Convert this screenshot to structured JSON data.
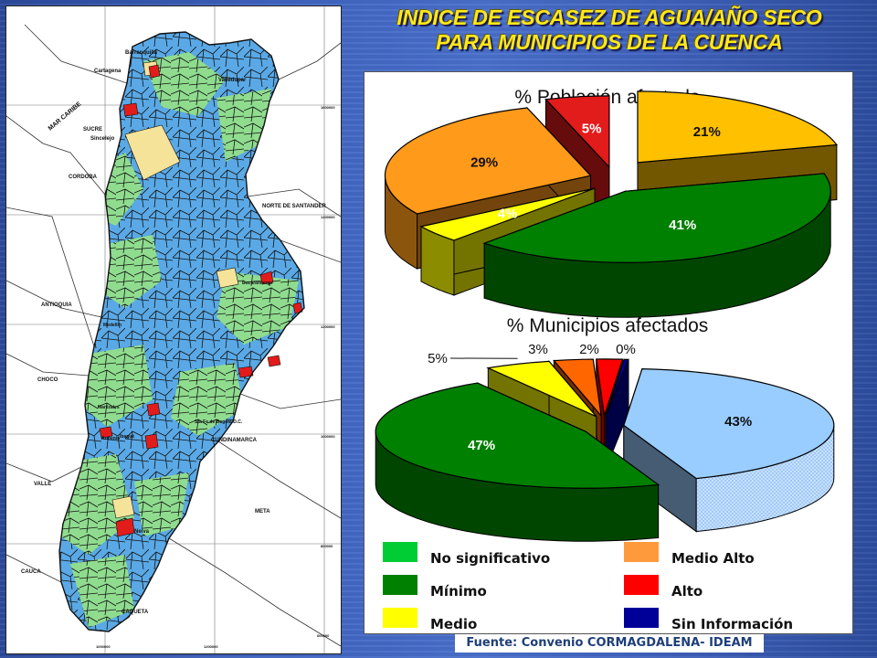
{
  "slide": {
    "title_line1": "INDICE DE ESCASEZ DE AGUA/AÑO SECO",
    "title_line2": "PARA MUNICIPIOS DE LA CUENCA",
    "source": "Fuente: Convenio CORMAGDALENA- IDEAM"
  },
  "map": {
    "labels": [
      "Barranquilla",
      "Cartagena",
      "MAR CARIBE",
      "SUCRE",
      "Sincelejo",
      "CORDOBA",
      "Valledupar",
      "NORTE DE SANTANDER",
      "ANTIOQUIA",
      "CHOCO",
      "Bucaramanga",
      "Medellín",
      "Ibagué",
      "Sta Fe de Bogotá D.C.",
      "CUNDINAMARCA",
      "Manizales",
      "Armenia",
      "VALLE",
      "META",
      "CAUCA",
      "Neiva",
      "CAQUETA"
    ],
    "grid_labels": [
      "1600000",
      "1400000",
      "1200000",
      "1000000",
      "800000",
      "600000",
      "1000000",
      "1200000"
    ],
    "colors": {
      "no_significativo": "#8fdc8f",
      "minimo": "#5aa9e6",
      "alto": "#e21b1b",
      "medio": "#f6e39a",
      "border": "#111111"
    }
  },
  "chart_data": [
    {
      "type": "pie",
      "title": "% Población afectada",
      "slices": [
        {
          "category": "Sin Información",
          "value": 21,
          "label": "21%",
          "color": "#ffc000"
        },
        {
          "category": "Mínimo",
          "value": 41,
          "label": "41%",
          "color": "#008000"
        },
        {
          "category": "Medio",
          "value": 4,
          "label": "4%",
          "color": "#ffff00"
        },
        {
          "category": "Medio Alto",
          "value": 29,
          "label": "29%",
          "color": "#ff9a1a"
        },
        {
          "category": "Alto",
          "value": 5,
          "label": "5%",
          "color": "#e21b1b"
        }
      ],
      "projection": "3d-exploded"
    },
    {
      "type": "pie",
      "title": "% Municipios afectados",
      "slices": [
        {
          "category": "No significativo",
          "value": 43,
          "label": "43%",
          "color": "#99ccff"
        },
        {
          "category": "Mínimo",
          "value": 47,
          "label": "47%",
          "color": "#008000"
        },
        {
          "category": "Medio",
          "value": 5,
          "label": "5%",
          "color": "#ffff00"
        },
        {
          "category": "Medio Alto",
          "value": 3,
          "label": "3%",
          "color": "#ff6600"
        },
        {
          "category": "Alto",
          "value": 2,
          "label": "2%",
          "color": "#ff0000"
        },
        {
          "category": "Sin Información",
          "value": 0,
          "label": "0%",
          "color": "#000099"
        }
      ],
      "projection": "3d-exploded"
    }
  ],
  "legend": [
    {
      "label": "No significativo",
      "color": "#00cc33"
    },
    {
      "label": "Medio Alto",
      "color": "#ff9a3c"
    },
    {
      "label": "Mínimo",
      "color": "#008000"
    },
    {
      "label": "Alto",
      "color": "#ff0000"
    },
    {
      "label": "Medio",
      "color": "#ffff00"
    },
    {
      "label": "Sin Información",
      "color": "#000099"
    }
  ]
}
